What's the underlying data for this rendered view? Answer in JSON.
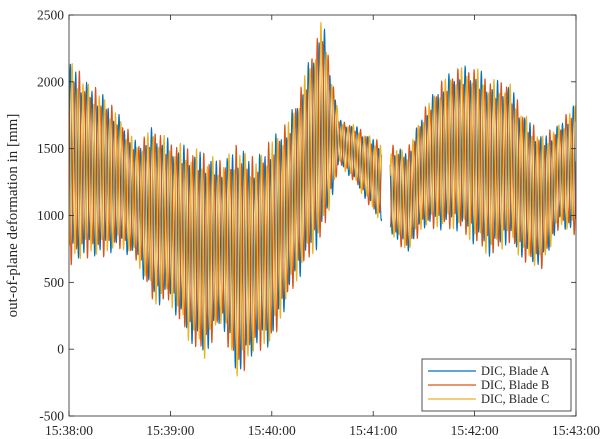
{
  "chart_data": {
    "type": "line",
    "title": "",
    "xlabel": "",
    "ylabel": "out-of-plane deformation in [mm]",
    "x_ticks": [
      "15:38:00",
      "15:39:00",
      "15:40:00",
      "15:41:00",
      "15:42:00",
      "15:43:00"
    ],
    "x_range": [
      "15:38:00",
      "15:43:00"
    ],
    "y_ticks": [
      -500,
      0,
      500,
      1000,
      1500,
      2000,
      2500
    ],
    "ylim": [
      -500,
      2500
    ],
    "grid": false,
    "legend_position": "bottom-right",
    "oscillation_period_seconds": 3.2,
    "gap": [
      "15:41:05",
      "15:41:10"
    ],
    "envelope": {
      "time_seconds": [
        0,
        10,
        20,
        30,
        40,
        50,
        60,
        70,
        80,
        90,
        100,
        110,
        120,
        130,
        140,
        150,
        160,
        170,
        180,
        190,
        200,
        210,
        220,
        230,
        240,
        250,
        260,
        270,
        280,
        290,
        300
      ],
      "mean": [
        1400,
        1350,
        1300,
        1250,
        1100,
        1000,
        950,
        800,
        700,
        800,
        650,
        700,
        800,
        1050,
        1350,
        1650,
        1550,
        1450,
        1300,
        1200,
        1100,
        1350,
        1450,
        1500,
        1450,
        1350,
        1400,
        1200,
        1100,
        1300,
        1350
      ],
      "amplitude": [
        700,
        600,
        550,
        450,
        400,
        600,
        550,
        650,
        700,
        550,
        800,
        650,
        700,
        600,
        650,
        750,
        150,
        200,
        250,
        300,
        350,
        400,
        500,
        550,
        600,
        600,
        550,
        500,
        450,
        350,
        450
      ]
    },
    "series": [
      {
        "name": "DIC, Blade A",
        "color": "#0072BD",
        "phase_deg": 0
      },
      {
        "name": "DIC, Blade B",
        "color": "#D95319",
        "phase_deg": 120
      },
      {
        "name": "DIC, Blade C",
        "color": "#EDB120",
        "phase_deg": 240
      }
    ]
  }
}
